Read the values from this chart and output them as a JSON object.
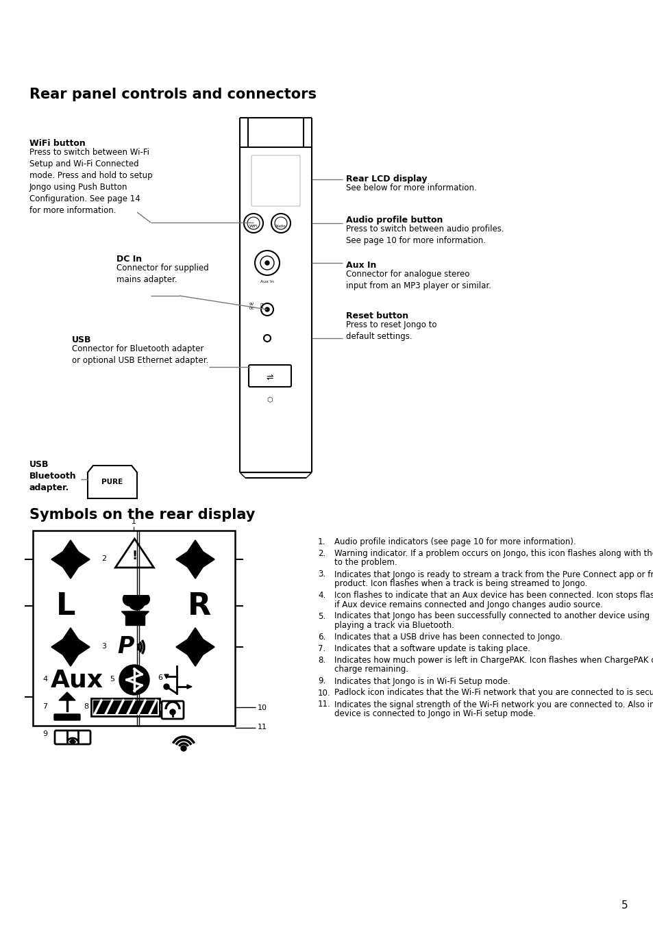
{
  "bg_color": "#ffffff",
  "section1_title": "Rear panel controls and connectors",
  "section2_title": "Symbols on the rear display",
  "wifi_bold": "WiFi button",
  "wifi_text": "Press to switch between Wi-Fi\nSetup and Wi-Fi Connected\nmode. Press and hold to setup\nJongo using Push Button\nConfiguration. See page 14\nfor more information.",
  "dcin_bold": "DC In",
  "dcin_text": "Connector for supplied\nmains adapter.",
  "usb_bold": "USB",
  "usb_text": "Connector for Bluetooth adapter\nor optional USB Ethernet adapter.",
  "usb2_bold": "USB\nBluetooth\nadapter.",
  "lcd_bold": "Rear LCD display",
  "lcd_text": "See below for more information.",
  "audio_bold": "Audio profile button",
  "audio_text": "Press to switch between audio profiles.\nSee page 10 for more information.",
  "aux_bold": "Aux In",
  "aux_text": "Connector for analogue stereo\ninput from an MP3 player or similar.",
  "reset_bold": "Reset button",
  "reset_text": "Press to reset Jongo to\ndefault settings.",
  "symbols_list": [
    "Audio profile indicators (see page 10 for more information).",
    "Warning indicator. If a problem occurs on Jongo, this icon flashes along with the icon that corresponds to the problem.",
    "Indicates that Jongo is ready to stream a track from the Pure Connect app or from a compatible Pure product. Icon flashes when a track is being streamed to Jongo.",
    "Icon flashes to indicate that an Aux device has been connected. Icon stops flashing and remains steady if Aux device remains connected and Jongo changes audio source.",
    "Indicates that Jongo has been successfully connected to another device using Bluetooth. Icon flashes if playing a track via Bluetooth.",
    "Indicates that a USB drive has been connected to Jongo.",
    "Indicates that a software update is taking place.",
    "Indicates how much power is left in ChargePAK. Icon flashes when ChargePAK only has five minutes of charge remaining.",
    "Indicates that Jongo is in Wi-Fi Setup mode.",
    "Padlock icon indicates that the Wi-Fi network that you are connected to is secured.",
    "Indicates the signal strength of the Wi-Fi network you are connected to. Also indicates that a mobile device is connected to Jongo in Wi-Fi setup mode."
  ],
  "page_number": "5"
}
